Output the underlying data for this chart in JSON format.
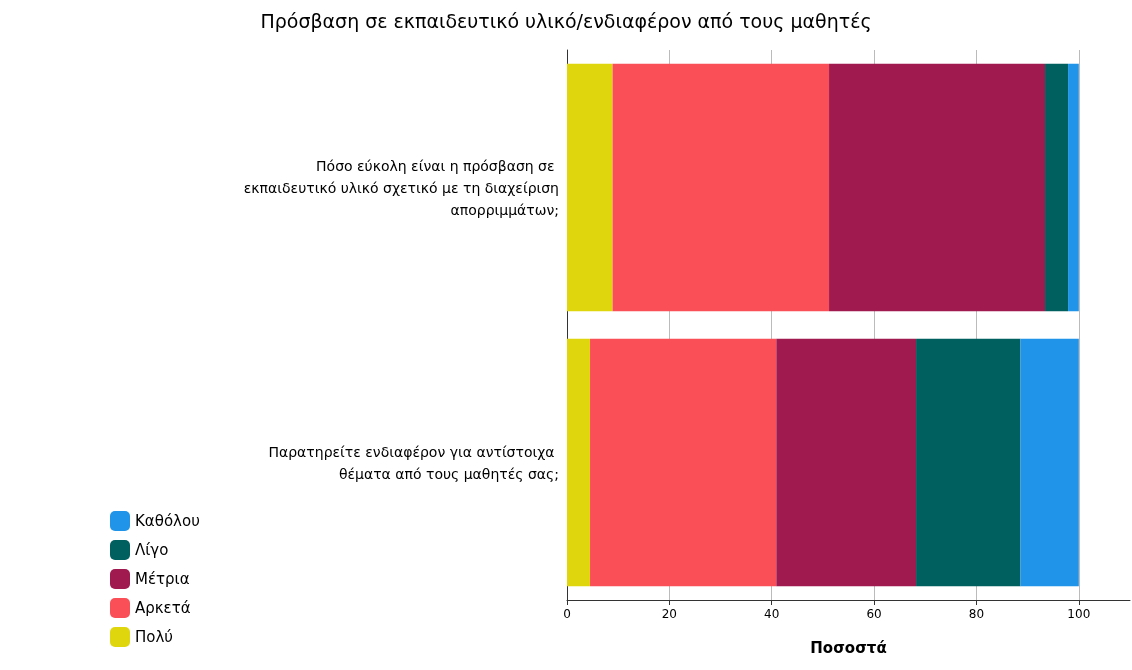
{
  "chart_data": {
    "type": "bar",
    "orientation": "horizontal",
    "stacked": true,
    "title": "Πρόσβαση σε εκπαιδευτικό υλικό/ενδιαφέρον από τους μαθητές",
    "xlabel": "Ποσοστά",
    "categories": [
      "Πόσο εύκολη είναι η πρόσβαση σε εκπαιδευτικό υλικό σχετικό με τη διαχείριση απορριμμάτων;",
      "Παρατηρείτε ενδιαφέρον για αντίστοιχα θέματα από τους μαθητές σας;"
    ],
    "series": [
      {
        "name": "Πολύ",
        "color": "#e0d60e",
        "values": [
          8.9,
          4.5
        ]
      },
      {
        "name": "Αρκετά",
        "color": "#fb4f57",
        "values": [
          42.3,
          36.4
        ]
      },
      {
        "name": "Μέτρια",
        "color": "#a0194f",
        "values": [
          42.2,
          27.3
        ]
      },
      {
        "name": "Λίγο",
        "color": "#005f5f",
        "values": [
          4.5,
          20.4
        ]
      },
      {
        "name": "Καθόλου",
        "color": "#1f94e8",
        "values": [
          2.1,
          11.4
        ]
      }
    ],
    "xlim": [
      0,
      110
    ],
    "xticks": [
      0,
      20,
      40,
      60,
      80,
      100
    ],
    "grid": "x",
    "legend": "bottom left"
  }
}
